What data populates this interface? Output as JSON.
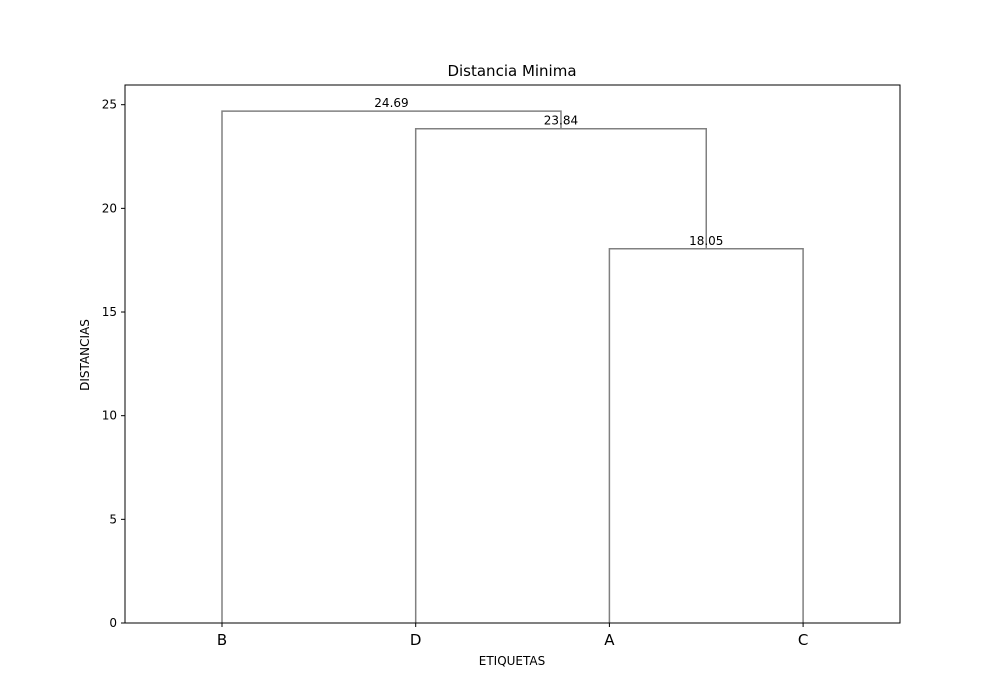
{
  "chart_data": {
    "type": "dendrogram",
    "title": "Distancia Minima",
    "xlabel": "ETIQUETAS",
    "ylabel": "DISTANCIAS",
    "leaves": [
      "B",
      "D",
      "A",
      "C"
    ],
    "merges": [
      {
        "left": "A",
        "right": "C",
        "height": 18.05,
        "label": "18.05"
      },
      {
        "left": "D",
        "right": "A+C",
        "height": 23.84,
        "label": "23.84"
      },
      {
        "left": "B",
        "right": "D+A+C",
        "height": 24.69,
        "label": "24.69"
      }
    ],
    "yticks": [
      0,
      5,
      10,
      15,
      20,
      25
    ],
    "ylim": [
      0,
      25.95
    ],
    "grid": false,
    "line_color": "#808080"
  }
}
